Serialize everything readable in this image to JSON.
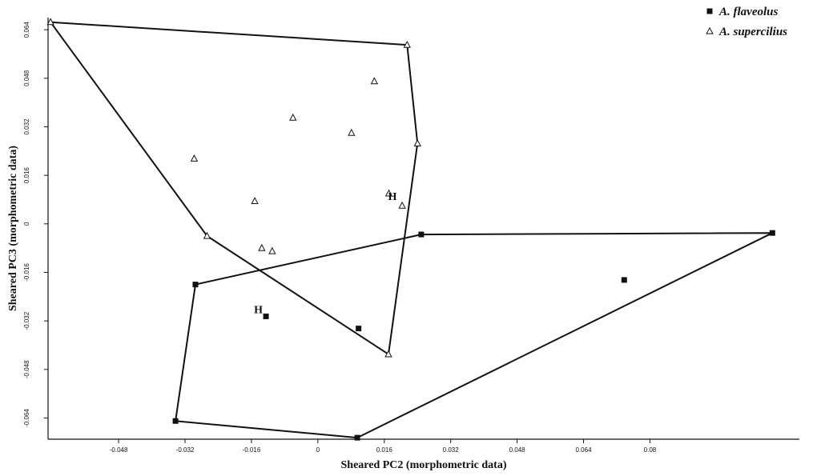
{
  "chart_data": {
    "type": "scatter",
    "xlabel": "Sheared PC2 (morphometric data)",
    "ylabel": "Sheared PC3 (morphometric data)",
    "xlim": [
      -0.065,
      0.116
    ],
    "ylim": [
      -0.071,
      0.068
    ],
    "xticks": [
      -0.048,
      -0.032,
      -0.016,
      0,
      0.016,
      0.032,
      0.048,
      0.064,
      0.08
    ],
    "xtick_labels": [
      "-0.048",
      "-0.032",
      "-0.016",
      "0",
      "0.016",
      "0.032",
      "0.048",
      "0.064",
      "0.08"
    ],
    "yticks": [
      -0.064,
      -0.048,
      -0.032,
      -0.016,
      0,
      0.016,
      0.032,
      0.048,
      0.064
    ],
    "ytick_labels": [
      "-0.064",
      "-0.048",
      "-0.032",
      "-0.016",
      "0",
      "0.016",
      "0.032",
      "0.048",
      "0.064"
    ],
    "grid": false,
    "legend": "top-right",
    "series": [
      {
        "name": "A. flaveolus",
        "marker": "filled-square",
        "color": "#111111",
        "points": [
          {
            "x": -0.0295,
            "y": -0.02
          },
          {
            "x": -0.0343,
            "y": -0.065
          },
          {
            "x": 0.0095,
            "y": -0.0705
          },
          {
            "x": 0.0249,
            "y": -0.0035
          },
          {
            "x": 0.1095,
            "y": -0.003
          },
          {
            "x": 0.0738,
            "y": -0.0185
          },
          {
            "x": -0.0125,
            "y": -0.0305
          },
          {
            "x": 0.0098,
            "y": -0.0345
          }
        ],
        "hull": [
          {
            "x": -0.0295,
            "y": -0.02
          },
          {
            "x": 0.0249,
            "y": -0.0035
          },
          {
            "x": 0.1095,
            "y": -0.003
          },
          {
            "x": 0.0095,
            "y": -0.0705
          },
          {
            "x": -0.0343,
            "y": -0.065
          },
          {
            "x": -0.0295,
            "y": -0.02
          }
        ]
      },
      {
        "name": "A. supercilius",
        "marker": "open-triangle",
        "color": "#111111",
        "points": [
          {
            "x": -0.0644,
            "y": 0.0665
          },
          {
            "x": 0.0215,
            "y": 0.059
          },
          {
            "x": 0.024,
            "y": 0.0265
          },
          {
            "x": 0.017,
            "y": -0.043
          },
          {
            "x": -0.0267,
            "y": -0.004
          },
          {
            "x": -0.0298,
            "y": 0.0215
          },
          {
            "x": -0.0152,
            "y": 0.0075
          },
          {
            "x": -0.0135,
            "y": -0.008
          },
          {
            "x": -0.011,
            "y": -0.009
          },
          {
            "x": -0.006,
            "y": 0.035
          },
          {
            "x": 0.0081,
            "y": 0.03
          },
          {
            "x": 0.0136,
            "y": 0.047
          },
          {
            "x": 0.0171,
            "y": 0.01
          },
          {
            "x": 0.0203,
            "y": 0.006
          }
        ],
        "hull": [
          {
            "x": -0.0644,
            "y": 0.0665
          },
          {
            "x": 0.0215,
            "y": 0.059
          },
          {
            "x": 0.024,
            "y": 0.0265
          },
          {
            "x": 0.017,
            "y": -0.043
          },
          {
            "x": -0.0267,
            "y": -0.004
          },
          {
            "x": -0.0644,
            "y": 0.0665
          }
        ]
      }
    ],
    "annotations": [
      {
        "text": "H",
        "x": 0.0198,
        "y": 0.0068,
        "offset": "upper-left"
      },
      {
        "text": "H",
        "x": -0.0125,
        "y": -0.0305,
        "offset": "upper-left"
      }
    ]
  }
}
